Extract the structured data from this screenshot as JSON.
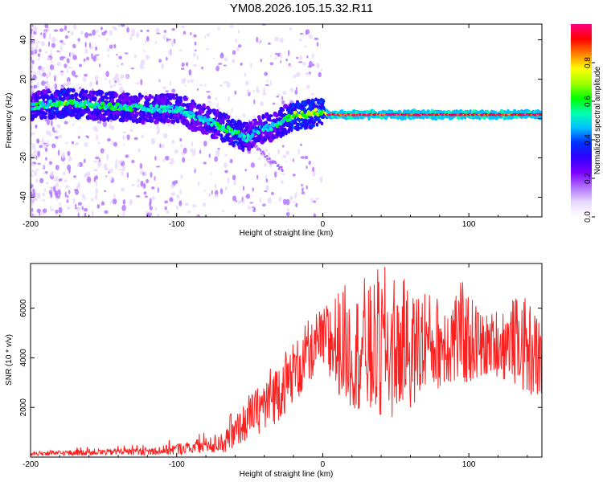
{
  "title": "YM08.2026.105.15.32.R11",
  "chart_data": [
    {
      "type": "heatmap",
      "title": "YM08.2026.105.15.32.R11",
      "xlabel": "Height of straight line (km)",
      "ylabel": "Frequency (Hz)",
      "xlim": [
        -200,
        150
      ],
      "ylim": [
        -50,
        48
      ],
      "xticks": [
        -200,
        -100,
        0,
        100
      ],
      "yticks": [
        -40,
        -20,
        0,
        20,
        40
      ],
      "colorbar": {
        "label": "Normalized spectral amplitude",
        "range": [
          0,
          1
        ],
        "ticks": [
          "0.0",
          "0.2",
          "0.4",
          "0.6",
          "0.8"
        ],
        "colors": [
          "#ffffff",
          "#e8d8ff",
          "#b070ff",
          "#7a00ff",
          "#3000ff",
          "#0030ff",
          "#00c0ff",
          "#00ffb0",
          "#00ff00",
          "#a0ff00",
          "#ffff00",
          "#ff8000",
          "#ff0000",
          "#ff0080"
        ]
      },
      "ridge": {
        "x": [
          -200,
          -180,
          -160,
          -140,
          -120,
          -100,
          -90,
          -80,
          -70,
          -60,
          -52,
          -45,
          -35,
          -25,
          -18,
          -10,
          0,
          3,
          10,
          50,
          100,
          150
        ],
        "freq": [
          6,
          8,
          7,
          6,
          5,
          5,
          2,
          -1,
          -4,
          -7,
          -10,
          -6,
          -4,
          0,
          2,
          2,
          4,
          2,
          2,
          2,
          2,
          2
        ],
        "amplitude": [
          0.5,
          0.6,
          0.55,
          0.55,
          0.5,
          0.5,
          0.45,
          0.5,
          0.55,
          0.6,
          0.5,
          0.45,
          0.5,
          0.55,
          0.7,
          0.7,
          0.6,
          0.9,
          0.95,
          0.95,
          0.95,
          0.95
        ]
      }
    },
    {
      "type": "line",
      "xlabel": "Height of straight line (km)",
      "ylabel": "SNR (10 * v/v)",
      "xlim": [
        -200,
        150
      ],
      "ylim": [
        0,
        7800
      ],
      "xticks": [
        -200,
        -100,
        0,
        100
      ],
      "yticks": [
        2000,
        4000,
        6000
      ],
      "color": "#ff2020",
      "envelope": {
        "x": [
          -200,
          -150,
          -120,
          -100,
          -80,
          -65,
          -55,
          -45,
          -35,
          -25,
          -15,
          -5,
          0,
          10,
          20,
          30,
          40,
          50,
          60,
          70,
          80,
          90,
          100,
          110,
          120,
          130,
          140,
          150
        ],
        "low": [
          50,
          80,
          80,
          100,
          150,
          200,
          600,
          900,
          1200,
          1800,
          2500,
          3200,
          3500,
          2500,
          2000,
          1800,
          1500,
          1600,
          2000,
          2500,
          2800,
          3000,
          3000,
          3200,
          3200,
          3000,
          2600,
          2300
        ],
        "high": [
          250,
          350,
          400,
          600,
          800,
          1200,
          2200,
          3000,
          3800,
          4500,
          5200,
          5800,
          6200,
          7200,
          6800,
          7400,
          7800,
          7500,
          7000,
          7300,
          6500,
          7200,
          7000,
          6000,
          6200,
          6500,
          6400,
          6000
        ]
      }
    }
  ]
}
